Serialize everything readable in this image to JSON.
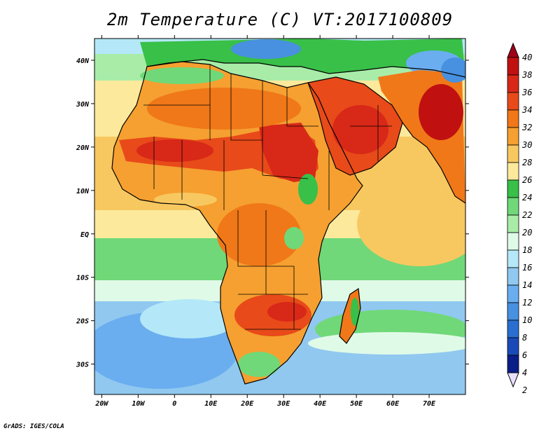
{
  "title": "2m Temperature (C) VT:2017100809",
  "footer": "GrADS: IGES/COLA",
  "axes": {
    "x_ticks": [
      "20W",
      "10W",
      "0",
      "10E",
      "20E",
      "30E",
      "40E",
      "50E",
      "60E",
      "70E"
    ],
    "y_ticks": [
      "40N",
      "30N",
      "20N",
      "10N",
      "EQ",
      "10S",
      "20S",
      "30S"
    ],
    "lon_range": [
      -22,
      80
    ],
    "lat_range": [
      -37,
      45
    ]
  },
  "colorbar": {
    "labels": [
      "40",
      "38",
      "36",
      "34",
      "32",
      "30",
      "28",
      "26",
      "24",
      "22",
      "20",
      "18",
      "16",
      "14",
      "12",
      "10",
      "8",
      "6",
      "4",
      "2"
    ],
    "colors": [
      "#a0001a",
      "#c01010",
      "#d82818",
      "#e84a1a",
      "#f07818",
      "#f5a030",
      "#f8c860",
      "#fce99c",
      "#38c048",
      "#70d878",
      "#a8eca8",
      "#e0fae8",
      "#b4e8f8",
      "#90c8f0",
      "#6aaef0",
      "#4890e0",
      "#2a6ed0",
      "#1a4ab8",
      "#0a1e88",
      "#e8e0ff"
    ]
  },
  "colors": {
    "ocean_cool": "#6aaef0",
    "ocean_mid": "#a8eca8",
    "land_hot": "#f07818",
    "land_very_hot": "#d82818",
    "land_green": "#38c048"
  }
}
